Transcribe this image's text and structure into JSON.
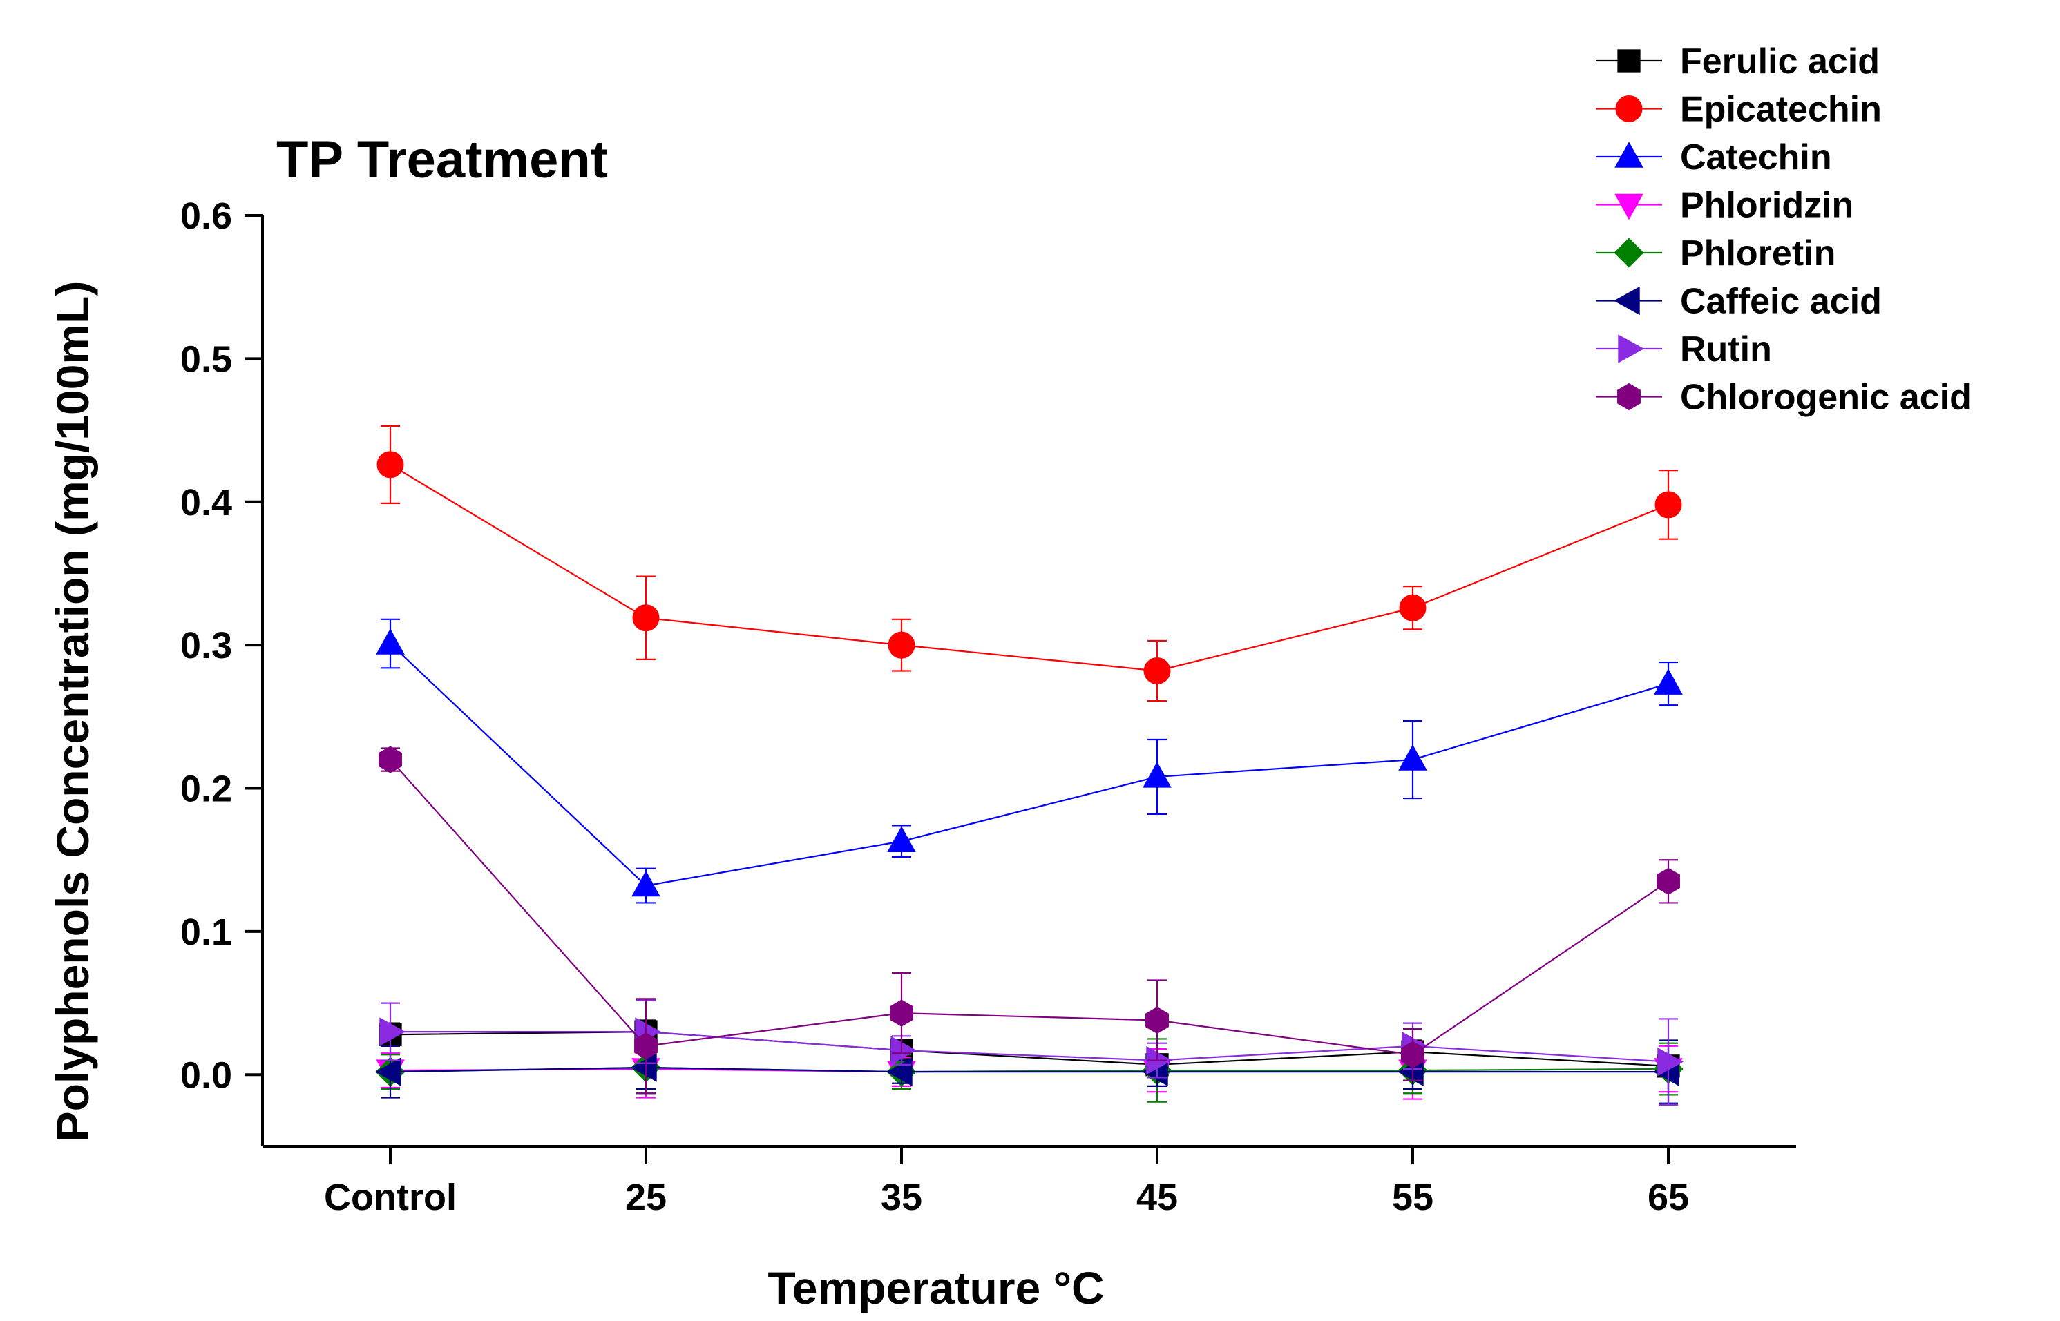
{
  "chart_data": {
    "type": "line",
    "title": "TP Treatment",
    "xlabel": "Temperature °C",
    "ylabel": "Polyphenols Concentration (mg/100mL)",
    "ylim": [
      -0.05,
      0.6
    ],
    "yticks": [
      "0.0",
      "0.1",
      "0.2",
      "0.3",
      "0.4",
      "0.5",
      "0.6"
    ],
    "yticks_values": [
      0.0,
      0.1,
      0.2,
      0.3,
      0.4,
      0.5,
      0.6
    ],
    "categories": [
      "Control",
      "25",
      "35",
      "45",
      "55",
      "65"
    ],
    "grid": false,
    "legend_position": "top-right",
    "series": [
      {
        "name": "Ferulic acid",
        "color": "#000000",
        "marker": "square",
        "values": [
          0.028,
          0.03,
          0.017,
          0.007,
          0.016,
          0.006
        ],
        "errors": [
          0.008,
          0.008,
          0.006,
          0.006,
          0.008,
          0.006
        ]
      },
      {
        "name": "Epicatechin",
        "color": "#ff0000",
        "marker": "circle",
        "values": [
          0.426,
          0.319,
          0.3,
          0.282,
          0.326,
          0.398
        ],
        "errors": [
          0.027,
          0.029,
          0.018,
          0.021,
          0.015,
          0.024
        ]
      },
      {
        "name": "Catechin",
        "color": "#0000ff",
        "marker": "triangle-up",
        "values": [
          0.301,
          0.132,
          0.163,
          0.208,
          0.22,
          0.273
        ],
        "errors": [
          0.017,
          0.012,
          0.011,
          0.026,
          0.027,
          0.015
        ]
      },
      {
        "name": "Phloridzin",
        "color": "#ff00ff",
        "marker": "triangle-down",
        "values": [
          0.003,
          0.004,
          0.002,
          0.003,
          0.003,
          0.004
        ],
        "errors": [
          0.012,
          0.02,
          0.01,
          0.015,
          0.02,
          0.016
        ]
      },
      {
        "name": "Phloretin",
        "color": "#008000",
        "marker": "diamond",
        "values": [
          0.002,
          0.005,
          0.002,
          0.003,
          0.003,
          0.004
        ],
        "errors": [
          0.012,
          0.018,
          0.012,
          0.022,
          0.016,
          0.018
        ]
      },
      {
        "name": "Caffeic acid",
        "color": "#000080",
        "marker": "triangle-left",
        "values": [
          0.002,
          0.005,
          0.002,
          0.002,
          0.002,
          0.002
        ],
        "errors": [
          0.018,
          0.015,
          0.008,
          0.01,
          0.012,
          0.022
        ]
      },
      {
        "name": "Rutin",
        "color": "#8a2be2",
        "marker": "triangle-right",
        "values": [
          0.03,
          0.03,
          0.017,
          0.01,
          0.02,
          0.009
        ],
        "errors": [
          0.02,
          0.022,
          0.01,
          0.012,
          0.016,
          0.03
        ]
      },
      {
        "name": "Chlorogenic acid",
        "color": "#800080",
        "marker": "hexagon",
        "values": [
          0.22,
          0.02,
          0.043,
          0.038,
          0.014,
          0.135
        ],
        "errors": [
          0.008,
          0.033,
          0.028,
          0.028,
          0.018,
          0.015
        ]
      }
    ]
  }
}
